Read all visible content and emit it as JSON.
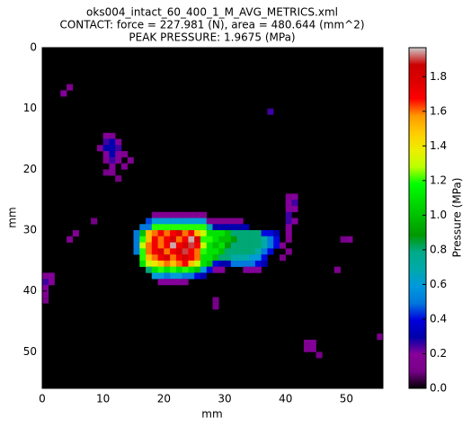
{
  "chart_data": {
    "type": "heatmap",
    "title": [
      "oks004_intact_60_400_1_M_AVG_METRICS.xml",
      "CONTACT: force = 227.981 (N), area = 480.644 (mm^2)",
      "PEAK PRESSURE: 1.9675 (MPa)"
    ],
    "x_label": "mm",
    "y_label": "mm",
    "colorbar_label": "Pressure (MPa)",
    "colormap": "nipy_spectral",
    "xlim": [
      0,
      56
    ],
    "ylim": [
      56,
      0
    ],
    "xticks": [
      0,
      10,
      20,
      30,
      40,
      50
    ],
    "yticks": [
      0,
      10,
      20,
      30,
      40,
      50
    ],
    "clim": [
      0,
      1.9675
    ],
    "cticks": [
      {
        "value": 0,
        "label": "0.0"
      },
      {
        "value": 0.2,
        "label": "0.2"
      },
      {
        "value": 0.4,
        "label": "0.4"
      },
      {
        "value": 0.6,
        "label": "0.6"
      },
      {
        "value": 0.8,
        "label": "0.8"
      },
      {
        "value": 1,
        "label": "1.0"
      },
      {
        "value": 1.2,
        "label": "1.2"
      },
      {
        "value": 1.4,
        "label": "1.4"
      },
      {
        "value": 1.6,
        "label": "1.6"
      },
      {
        "value": 1.8,
        "label": "1.8"
      }
    ],
    "cells": [
      [
        18,
        27,
        0.15
      ],
      [
        19,
        27,
        0.15
      ],
      [
        20,
        27,
        0.15
      ],
      [
        21,
        27,
        0.15
      ],
      [
        22,
        27,
        0.15
      ],
      [
        23,
        27,
        0.15
      ],
      [
        24,
        27,
        0.15
      ],
      [
        25,
        27,
        0.15
      ],
      [
        26,
        27,
        0.15
      ],
      [
        17,
        28,
        0.45
      ],
      [
        18,
        28,
        0.6
      ],
      [
        19,
        28,
        0.6
      ],
      [
        20,
        28,
        0.6
      ],
      [
        21,
        28,
        0.6
      ],
      [
        22,
        28,
        0.6
      ],
      [
        23,
        28,
        0.6
      ],
      [
        24,
        28,
        0.6
      ],
      [
        25,
        28,
        0.6
      ],
      [
        26,
        28,
        0.6
      ],
      [
        27,
        28,
        0.15
      ],
      [
        28,
        28,
        0.15
      ],
      [
        29,
        28,
        0.15
      ],
      [
        30,
        28,
        0.15
      ],
      [
        31,
        28,
        0.15
      ],
      [
        32,
        28,
        0.15
      ],
      [
        16,
        29,
        0.5
      ],
      [
        17,
        29,
        0.5
      ],
      [
        18,
        29,
        1.2
      ],
      [
        19,
        29,
        1.2
      ],
      [
        20,
        29,
        1.2
      ],
      [
        21,
        29,
        1.2
      ],
      [
        22,
        29,
        1.2
      ],
      [
        23,
        29,
        1.2
      ],
      [
        24,
        29,
        1.2
      ],
      [
        25,
        29,
        1.2
      ],
      [
        26,
        29,
        1.2
      ],
      [
        27,
        29,
        0.7
      ],
      [
        28,
        29,
        0.3
      ],
      [
        29,
        29,
        0.3
      ],
      [
        30,
        29,
        0.3
      ],
      [
        31,
        29,
        0.3
      ],
      [
        32,
        29,
        0.3
      ],
      [
        33,
        29,
        0.3
      ],
      [
        15,
        30,
        0.5
      ],
      [
        16,
        30,
        1.0
      ],
      [
        17,
        30,
        1.5
      ],
      [
        18,
        30,
        1.6
      ],
      [
        19,
        30,
        1.7
      ],
      [
        20,
        30,
        1.6
      ],
      [
        21,
        30,
        1.7
      ],
      [
        22,
        30,
        1.8
      ],
      [
        23,
        30,
        1.6
      ],
      [
        24,
        30,
        1.7
      ],
      [
        25,
        30,
        1.5
      ],
      [
        26,
        30,
        1.3
      ],
      [
        27,
        30,
        1.1
      ],
      [
        28,
        30,
        1.1
      ],
      [
        29,
        30,
        1.1
      ],
      [
        30,
        30,
        1.0
      ],
      [
        31,
        30,
        0.8
      ],
      [
        32,
        30,
        0.8
      ],
      [
        33,
        30,
        0.8
      ],
      [
        34,
        30,
        0.8
      ],
      [
        35,
        30,
        0.8
      ],
      [
        36,
        30,
        0.4
      ],
      [
        37,
        30,
        0.4
      ],
      [
        38,
        30,
        0.3
      ],
      [
        15,
        31,
        0.5
      ],
      [
        16,
        31,
        1.2
      ],
      [
        17,
        31,
        1.5
      ],
      [
        18,
        31,
        1.7
      ],
      [
        19,
        31,
        1.6
      ],
      [
        20,
        31,
        1.7
      ],
      [
        21,
        31,
        1.8
      ],
      [
        22,
        31,
        1.6
      ],
      [
        23,
        31,
        1.7
      ],
      [
        24,
        31,
        1.95
      ],
      [
        25,
        31,
        1.8
      ],
      [
        26,
        31,
        1.2
      ],
      [
        27,
        31,
        1.2
      ],
      [
        28,
        31,
        1.1
      ],
      [
        29,
        31,
        1.0
      ],
      [
        30,
        31,
        1.0
      ],
      [
        31,
        31,
        0.9
      ],
      [
        32,
        31,
        0.8
      ],
      [
        33,
        31,
        0.8
      ],
      [
        34,
        31,
        0.8
      ],
      [
        35,
        31,
        0.8
      ],
      [
        36,
        31,
        0.7
      ],
      [
        37,
        31,
        0.5
      ],
      [
        38,
        31,
        0.4
      ],
      [
        15,
        32,
        0.5
      ],
      [
        16,
        32,
        1.3
      ],
      [
        17,
        32,
        1.6
      ],
      [
        18,
        32,
        1.7
      ],
      [
        19,
        32,
        1.6
      ],
      [
        20,
        32,
        1.7
      ],
      [
        21,
        32,
        1.95
      ],
      [
        22,
        32,
        1.7
      ],
      [
        23,
        32,
        1.8
      ],
      [
        24,
        32,
        1.9
      ],
      [
        25,
        32,
        1.7
      ],
      [
        26,
        32,
        1.3
      ],
      [
        27,
        32,
        1.1
      ],
      [
        28,
        32,
        1.0
      ],
      [
        29,
        32,
        1.1
      ],
      [
        30,
        32,
        0.9
      ],
      [
        31,
        32,
        0.8
      ],
      [
        32,
        32,
        0.8
      ],
      [
        33,
        32,
        0.8
      ],
      [
        34,
        32,
        0.8
      ],
      [
        35,
        32,
        0.8
      ],
      [
        36,
        32,
        0.7
      ],
      [
        37,
        32,
        0.5
      ],
      [
        38,
        32,
        0.4
      ],
      [
        15,
        33,
        0.5
      ],
      [
        16,
        33,
        1.2
      ],
      [
        17,
        33,
        1.6
      ],
      [
        18,
        33,
        1.7
      ],
      [
        19,
        33,
        1.8
      ],
      [
        20,
        33,
        1.6
      ],
      [
        21,
        33,
        1.7
      ],
      [
        22,
        33,
        1.8
      ],
      [
        23,
        33,
        1.9
      ],
      [
        24,
        33,
        1.7
      ],
      [
        25,
        33,
        1.6
      ],
      [
        26,
        33,
        1.2
      ],
      [
        27,
        33,
        1.1
      ],
      [
        28,
        33,
        1.1
      ],
      [
        29,
        33,
        1.0
      ],
      [
        30,
        33,
        0.8
      ],
      [
        31,
        33,
        0.8
      ],
      [
        32,
        33,
        0.8
      ],
      [
        33,
        33,
        0.8
      ],
      [
        34,
        33,
        0.8
      ],
      [
        35,
        33,
        0.7
      ],
      [
        36,
        33,
        0.5
      ],
      [
        37,
        33,
        0.4
      ],
      [
        16,
        34,
        1.2
      ],
      [
        17,
        34,
        1.5
      ],
      [
        18,
        34,
        1.6
      ],
      [
        19,
        34,
        1.7
      ],
      [
        20,
        34,
        1.8
      ],
      [
        21,
        34,
        1.6
      ],
      [
        22,
        34,
        1.7
      ],
      [
        23,
        34,
        1.8
      ],
      [
        24,
        34,
        1.7
      ],
      [
        25,
        34,
        1.6
      ],
      [
        26,
        34,
        1.1
      ],
      [
        27,
        34,
        1.1
      ],
      [
        28,
        34,
        1.0
      ],
      [
        29,
        34,
        0.8
      ],
      [
        30,
        34,
        0.8
      ],
      [
        31,
        34,
        0.7
      ],
      [
        32,
        34,
        0.7
      ],
      [
        33,
        34,
        0.7
      ],
      [
        34,
        34,
        0.6
      ],
      [
        35,
        34,
        0.6
      ],
      [
        36,
        34,
        0.4
      ],
      [
        16,
        35,
        1.1
      ],
      [
        17,
        35,
        1.3
      ],
      [
        18,
        35,
        1.4
      ],
      [
        19,
        35,
        1.5
      ],
      [
        20,
        35,
        1.6
      ],
      [
        21,
        35,
        1.5
      ],
      [
        22,
        35,
        1.6
      ],
      [
        23,
        35,
        1.7
      ],
      [
        24,
        35,
        1.5
      ],
      [
        25,
        35,
        1.3
      ],
      [
        26,
        35,
        1.1
      ],
      [
        27,
        35,
        1.0
      ],
      [
        28,
        35,
        0.4
      ],
      [
        29,
        35,
        0.3
      ],
      [
        30,
        35,
        0.3
      ],
      [
        31,
        35,
        0.5
      ],
      [
        32,
        35,
        0.5
      ],
      [
        33,
        35,
        0.5
      ],
      [
        34,
        35,
        0.5
      ],
      [
        35,
        35,
        0.4
      ],
      [
        36,
        35,
        0.3
      ],
      [
        17,
        36,
        0.8
      ],
      [
        18,
        36,
        1.1
      ],
      [
        19,
        36,
        1.2
      ],
      [
        20,
        36,
        1.1
      ],
      [
        21,
        36,
        1.2
      ],
      [
        22,
        36,
        1.1
      ],
      [
        23,
        36,
        1.2
      ],
      [
        24,
        36,
        1.1
      ],
      [
        25,
        36,
        1.0
      ],
      [
        26,
        36,
        0.6
      ],
      [
        27,
        36,
        0.4
      ],
      [
        28,
        36,
        0.2
      ],
      [
        29,
        36,
        0.2
      ],
      [
        33,
        36,
        0.2
      ],
      [
        34,
        36,
        0.2
      ],
      [
        35,
        36,
        0.2
      ],
      [
        18,
        37,
        0.6
      ],
      [
        19,
        37,
        0.6
      ],
      [
        20,
        37,
        0.5
      ],
      [
        21,
        37,
        0.6
      ],
      [
        22,
        37,
        0.6
      ],
      [
        23,
        37,
        0.5
      ],
      [
        24,
        37,
        0.5
      ],
      [
        25,
        37,
        0.4
      ],
      [
        26,
        37,
        0.3
      ],
      [
        19,
        38,
        0.2
      ],
      [
        20,
        38,
        0.2
      ],
      [
        21,
        38,
        0.2
      ],
      [
        22,
        38,
        0.2
      ],
      [
        23,
        38,
        0.15
      ],
      [
        10,
        14,
        0.2
      ],
      [
        11,
        14,
        0.15
      ],
      [
        10,
        15,
        0.25
      ],
      [
        11,
        15,
        0.3
      ],
      [
        12,
        15,
        0.2
      ],
      [
        9,
        16,
        0.15
      ],
      [
        10,
        16,
        0.3
      ],
      [
        11,
        16,
        0.3
      ],
      [
        12,
        16,
        0.25
      ],
      [
        10,
        17,
        0.2
      ],
      [
        11,
        17,
        0.3
      ],
      [
        12,
        17,
        0.2
      ],
      [
        13,
        17,
        0.15
      ],
      [
        10,
        18,
        0.15
      ],
      [
        11,
        18,
        0.25
      ],
      [
        12,
        18,
        0.2
      ],
      [
        14,
        18,
        0.15
      ],
      [
        11,
        19,
        0.2
      ],
      [
        13,
        19,
        0.15
      ],
      [
        10,
        20,
        0.1
      ],
      [
        11,
        20,
        0.15
      ],
      [
        12,
        21,
        0.1
      ],
      [
        40,
        24,
        0.15
      ],
      [
        41,
        24,
        0.2
      ],
      [
        40,
        25,
        0.2
      ],
      [
        41,
        25,
        0.25
      ],
      [
        40,
        26,
        0.2
      ],
      [
        41,
        26,
        0.2
      ],
      [
        40,
        27,
        0.25
      ],
      [
        40,
        28,
        0.25
      ],
      [
        41,
        28,
        0.2
      ],
      [
        40,
        29,
        0.2
      ],
      [
        40,
        30,
        0.2
      ],
      [
        40,
        31,
        0.15
      ],
      [
        39,
        32,
        0.15
      ],
      [
        40,
        33,
        0.15
      ],
      [
        39,
        34,
        0.1
      ],
      [
        0,
        37,
        0.15
      ],
      [
        1,
        37,
        0.2
      ],
      [
        0,
        38,
        0.25
      ],
      [
        1,
        38,
        0.2
      ],
      [
        0,
        39,
        0.2
      ],
      [
        0,
        40,
        0.15
      ],
      [
        0,
        41,
        0.1
      ],
      [
        43,
        48,
        0.15
      ],
      [
        44,
        48,
        0.2
      ],
      [
        43,
        49,
        0.15
      ],
      [
        44,
        49,
        0.2
      ],
      [
        45,
        50,
        0.1
      ],
      [
        3,
        7,
        0.2
      ],
      [
        4,
        6,
        0.15
      ],
      [
        37,
        10,
        0.25
      ],
      [
        8,
        28,
        0.1
      ],
      [
        5,
        30,
        0.15
      ],
      [
        4,
        31,
        0.15
      ],
      [
        49,
        31,
        0.1
      ],
      [
        50,
        31,
        0.15
      ],
      [
        48,
        36,
        0.15
      ],
      [
        28,
        41,
        0.1
      ],
      [
        28,
        42,
        0.1
      ],
      [
        55,
        47,
        0.1
      ]
    ]
  }
}
